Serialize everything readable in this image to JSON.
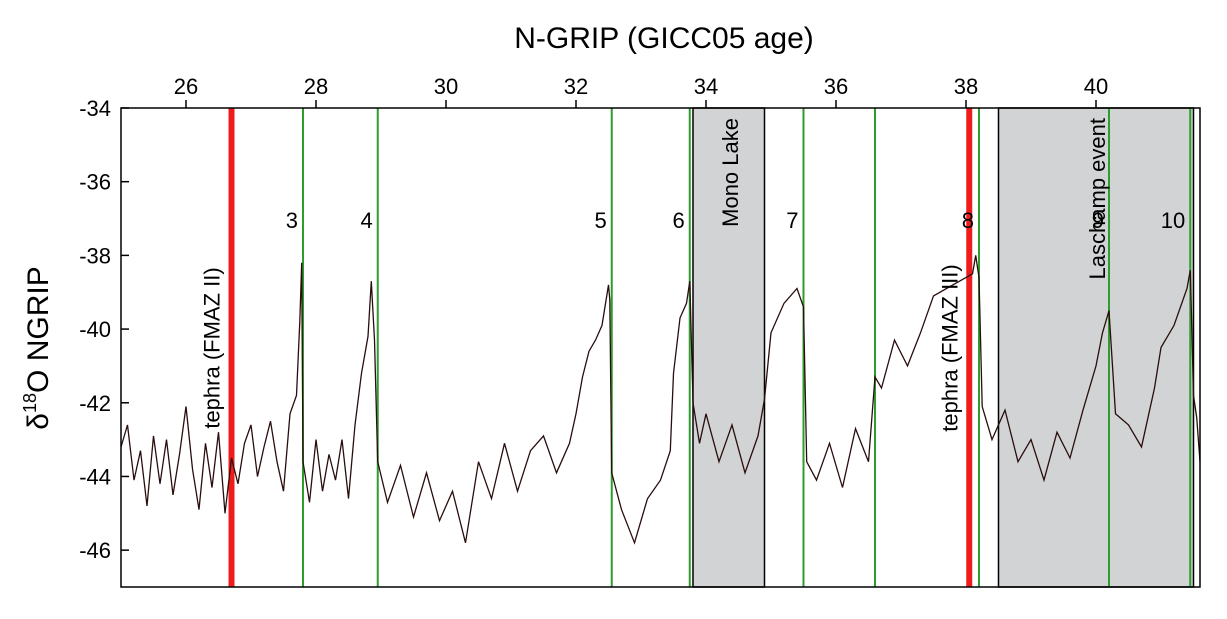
{
  "chart_data": {
    "type": "line",
    "title": "N-GRIP (GICC05 age)",
    "xlabel": "",
    "ylabel": "δ18O NGRIP",
    "ylabel_main": "δ",
    "ylabel_sup": "18",
    "ylabel_rest": "O NGRIP",
    "xlim": [
      25.0,
      41.6
    ],
    "ylim": [
      -47,
      -34
    ],
    "x_ticks": [
      26,
      28,
      30,
      32,
      34,
      36,
      38,
      40
    ],
    "y_ticks": [
      -34,
      -36,
      -38,
      -40,
      -42,
      -44,
      -46
    ],
    "x_tick_labels": [
      "26",
      "28",
      "30",
      "32",
      "34",
      "36",
      "38",
      "40"
    ],
    "y_tick_labels": [
      "-34",
      "-36",
      "-38",
      "-40",
      "-42",
      "-44",
      "-46"
    ],
    "series": [
      {
        "color": "#2a0d0d",
        "points": [
          [
            25.0,
            -43.2
          ],
          [
            25.1,
            -42.6
          ],
          [
            25.2,
            -44.1
          ],
          [
            25.3,
            -43.3
          ],
          [
            25.4,
            -44.8
          ],
          [
            25.5,
            -42.9
          ],
          [
            25.6,
            -44.2
          ],
          [
            25.7,
            -43.0
          ],
          [
            25.8,
            -44.5
          ],
          [
            25.9,
            -43.4
          ],
          [
            26.0,
            -42.1
          ],
          [
            26.1,
            -43.8
          ],
          [
            26.2,
            -44.9
          ],
          [
            26.3,
            -43.1
          ],
          [
            26.4,
            -44.3
          ],
          [
            26.5,
            -42.8
          ],
          [
            26.6,
            -45.0
          ],
          [
            26.7,
            -43.5
          ],
          [
            26.8,
            -44.2
          ],
          [
            26.9,
            -43.1
          ],
          [
            27.0,
            -42.6
          ],
          [
            27.1,
            -44.0
          ],
          [
            27.2,
            -43.2
          ],
          [
            27.3,
            -42.5
          ],
          [
            27.4,
            -43.6
          ],
          [
            27.5,
            -44.4
          ],
          [
            27.6,
            -42.3
          ],
          [
            27.7,
            -41.8
          ],
          [
            27.75,
            -39.8
          ],
          [
            27.78,
            -38.2
          ],
          [
            27.8,
            -43.6
          ],
          [
            27.9,
            -44.7
          ],
          [
            28.0,
            -43.0
          ],
          [
            28.1,
            -44.4
          ],
          [
            28.2,
            -43.4
          ],
          [
            28.3,
            -44.1
          ],
          [
            28.4,
            -43.0
          ],
          [
            28.5,
            -44.6
          ],
          [
            28.6,
            -42.6
          ],
          [
            28.7,
            -41.2
          ],
          [
            28.8,
            -40.2
          ],
          [
            28.85,
            -38.7
          ],
          [
            28.9,
            -40.3
          ],
          [
            28.95,
            -43.6
          ],
          [
            29.1,
            -44.7
          ],
          [
            29.3,
            -43.7
          ],
          [
            29.5,
            -45.1
          ],
          [
            29.7,
            -43.9
          ],
          [
            29.9,
            -45.2
          ],
          [
            30.1,
            -44.4
          ],
          [
            30.3,
            -45.8
          ],
          [
            30.5,
            -43.6
          ],
          [
            30.7,
            -44.6
          ],
          [
            30.9,
            -43.1
          ],
          [
            31.1,
            -44.4
          ],
          [
            31.3,
            -43.3
          ],
          [
            31.5,
            -42.9
          ],
          [
            31.7,
            -43.9
          ],
          [
            31.9,
            -43.1
          ],
          [
            32.0,
            -42.3
          ],
          [
            32.1,
            -41.3
          ],
          [
            32.2,
            -40.6
          ],
          [
            32.3,
            -40.3
          ],
          [
            32.4,
            -39.9
          ],
          [
            32.5,
            -38.8
          ],
          [
            32.52,
            -39.2
          ],
          [
            32.55,
            -43.9
          ],
          [
            32.7,
            -44.9
          ],
          [
            32.9,
            -45.8
          ],
          [
            33.1,
            -44.6
          ],
          [
            33.3,
            -44.1
          ],
          [
            33.45,
            -43.3
          ],
          [
            33.5,
            -41.2
          ],
          [
            33.6,
            -39.7
          ],
          [
            33.7,
            -39.3
          ],
          [
            33.75,
            -38.7
          ],
          [
            33.8,
            -42.0
          ],
          [
            33.9,
            -43.1
          ],
          [
            34.0,
            -42.3
          ],
          [
            34.2,
            -43.6
          ],
          [
            34.4,
            -42.6
          ],
          [
            34.6,
            -43.9
          ],
          [
            34.8,
            -42.9
          ],
          [
            34.9,
            -41.9
          ],
          [
            35.0,
            -40.1
          ],
          [
            35.2,
            -39.3
          ],
          [
            35.4,
            -38.9
          ],
          [
            35.5,
            -39.4
          ],
          [
            35.55,
            -43.6
          ],
          [
            35.7,
            -44.1
          ],
          [
            35.9,
            -43.1
          ],
          [
            36.1,
            -44.3
          ],
          [
            36.3,
            -42.7
          ],
          [
            36.5,
            -43.6
          ],
          [
            36.6,
            -41.3
          ],
          [
            36.7,
            -41.6
          ],
          [
            36.9,
            -40.3
          ],
          [
            37.1,
            -41.0
          ],
          [
            37.3,
            -40.1
          ],
          [
            37.5,
            -39.1
          ],
          [
            37.7,
            -38.9
          ],
          [
            37.9,
            -38.7
          ],
          [
            38.1,
            -38.5
          ],
          [
            38.15,
            -38.0
          ],
          [
            38.2,
            -38.6
          ],
          [
            38.25,
            -42.1
          ],
          [
            38.4,
            -43.0
          ],
          [
            38.6,
            -42.2
          ],
          [
            38.8,
            -43.6
          ],
          [
            39.0,
            -43.0
          ],
          [
            39.2,
            -44.1
          ],
          [
            39.4,
            -42.8
          ],
          [
            39.6,
            -43.5
          ],
          [
            39.8,
            -42.2
          ],
          [
            40.0,
            -41.0
          ],
          [
            40.1,
            -40.1
          ],
          [
            40.2,
            -39.5
          ],
          [
            40.3,
            -42.3
          ],
          [
            40.5,
            -42.6
          ],
          [
            40.7,
            -43.2
          ],
          [
            40.9,
            -41.6
          ],
          [
            41.0,
            -40.5
          ],
          [
            41.2,
            -39.9
          ],
          [
            41.4,
            -38.9
          ],
          [
            41.45,
            -38.4
          ],
          [
            41.5,
            -41.8
          ],
          [
            41.55,
            -42.4
          ],
          [
            41.6,
            -43.6
          ]
        ]
      }
    ],
    "shaded_regions": [
      {
        "label": "Mono Lake",
        "x0": 33.8,
        "x1": 34.9,
        "color": "#d1d3d4"
      },
      {
        "label": "Laschamp event",
        "x0": 38.5,
        "x1": 41.5,
        "color": "#d1d3d4"
      }
    ],
    "red_lines": [
      {
        "x": 26.7,
        "label": "tephra (FMAZ II)",
        "color": "#ee1c1c",
        "label_position": "left"
      },
      {
        "x": 38.05,
        "label": "tephra (FMAZ III)",
        "color": "#ee1c1c",
        "label_position": "left"
      }
    ],
    "green_lines": [
      {
        "x": 27.8,
        "label": "3",
        "color": "#2e9c2e"
      },
      {
        "x": 28.95,
        "label": "4",
        "color": "#2e9c2e"
      },
      {
        "x": 32.55,
        "label": "5",
        "color": "#2e9c2e"
      },
      {
        "x": 33.75,
        "label": "6",
        "color": "#2e9c2e"
      },
      {
        "x": 35.5,
        "label": "7",
        "color": "#2e9c2e"
      },
      {
        "x": 36.6,
        "label": "",
        "color": "#2e9c2e"
      },
      {
        "x": 38.2,
        "label": "8",
        "color": "#2e9c2e"
      },
      {
        "x": 40.2,
        "label": "9",
        "color": "#2e9c2e"
      },
      {
        "x": 41.45,
        "label": "10",
        "color": "#2e9c2e"
      }
    ],
    "grid": false
  }
}
